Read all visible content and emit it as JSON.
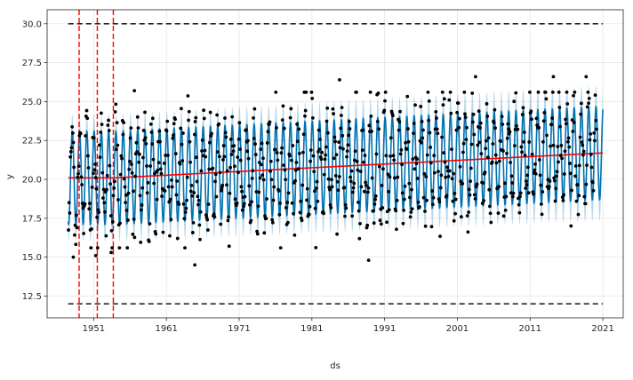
{
  "chart_data": {
    "type": "line",
    "title": "",
    "xlabel": "ds",
    "ylabel": "y",
    "xlim": [
      1944.6,
      2023.8
    ],
    "ylim": [
      11.1,
      30.9
    ],
    "x_ticks": [
      {
        "value": 1951,
        "label": "1951"
      },
      {
        "value": 1961,
        "label": "1961"
      },
      {
        "value": 1971,
        "label": "1971"
      },
      {
        "value": 1981,
        "label": "1981"
      },
      {
        "value": 1991,
        "label": "1991"
      },
      {
        "value": 2001,
        "label": "2001"
      },
      {
        "value": 2011,
        "label": "2011"
      },
      {
        "value": 2021,
        "label": "2021"
      }
    ],
    "y_ticks": [
      {
        "value": 12.5,
        "label": "12.5"
      },
      {
        "value": 15.0,
        "label": "15.0"
      },
      {
        "value": 17.5,
        "label": "17.5"
      },
      {
        "value": 20.0,
        "label": "20.0"
      },
      {
        "value": 22.5,
        "label": "22.5"
      },
      {
        "value": 25.0,
        "label": "25.0"
      },
      {
        "value": 27.5,
        "label": "27.5"
      },
      {
        "value": 30.0,
        "label": "30.0"
      }
    ],
    "grid": true,
    "cap": 30.0,
    "floor": 12.0,
    "changepoints": [
      1949.0,
      1951.5,
      1953.7
    ],
    "trend": {
      "x": [
        1947.5,
        1954.0,
        2021.0
      ],
      "y": [
        20.1,
        20.1,
        21.7
      ]
    },
    "forecast": {
      "start": 1947.5,
      "end": 2021.0,
      "seasonal_amplitude": 3.0,
      "band_halfwidth": 1.1,
      "period_years": 1
    },
    "observations": {
      "start_year": 1947,
      "end_year": 2019,
      "points_per_year": 12,
      "noise_sd": 1.2,
      "outliers": [
        {
          "x": 1948.2,
          "y": 15.0
        },
        {
          "x": 1951.3,
          "y": 15.1
        },
        {
          "x": 1953.4,
          "y": 15.3
        },
        {
          "x": 1956.6,
          "y": 25.7
        },
        {
          "x": 1964.9,
          "y": 14.5
        },
        {
          "x": 1984.8,
          "y": 26.4
        },
        {
          "x": 1988.8,
          "y": 14.8
        },
        {
          "x": 2003.5,
          "y": 26.6
        },
        {
          "x": 2014.2,
          "y": 26.6
        },
        {
          "x": 2018.7,
          "y": 26.6
        }
      ]
    },
    "colors": {
      "observed": "#000000",
      "forecast_line": "#0072B2",
      "uncertainty": "#0072B2",
      "trend": "#ff0000",
      "changepoint": "#ff0000",
      "cap_floor": "#000000",
      "grid": "#e6e6e6",
      "axes": "#262626"
    }
  }
}
